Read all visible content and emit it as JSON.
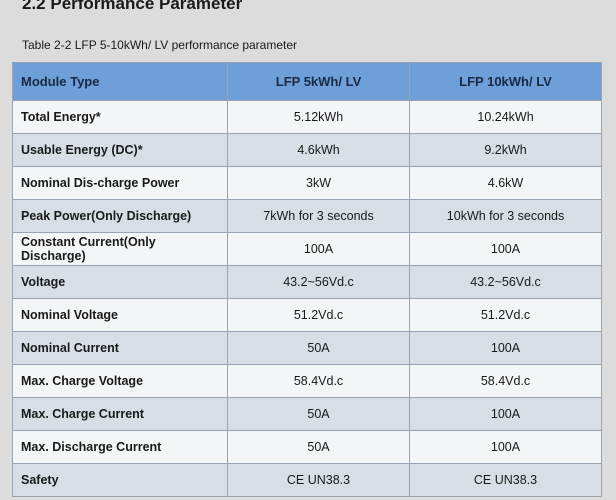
{
  "heading": "2.2 Performance Parameter",
  "caption": "Table 2-2 LFP 5-10kWh/ LV performance parameter",
  "table": {
    "header": [
      "Module Type",
      "LFP 5kWh/ LV",
      "LFP 10kWh/ LV"
    ],
    "rows": [
      [
        "Total Energy*",
        "5.12kWh",
        "10.24kWh"
      ],
      [
        "Usable Energy (DC)*",
        "4.6kWh",
        "9.2kWh"
      ],
      [
        "Nominal Dis-charge Power",
        "3kW",
        "4.6kW"
      ],
      [
        "Peak Power(Only Discharge)",
        "7kWh for 3 seconds",
        "10kWh for 3 seconds"
      ],
      [
        "Constant Current(Only Discharge)",
        "100A",
        "100A"
      ],
      [
        "Voltage",
        "43.2~56Vd.c",
        "43.2~56Vd.c"
      ],
      [
        "Nominal Voltage",
        "51.2Vd.c",
        "51.2Vd.c"
      ],
      [
        "Nominal Current",
        "50A",
        "100A"
      ],
      [
        "Max. Charge Voltage",
        "58.4Vd.c",
        "58.4Vd.c"
      ],
      [
        "Max. Charge Current",
        "50A",
        "100A"
      ],
      [
        "Max. Discharge Current",
        "50A",
        "100A"
      ],
      [
        "Safety",
        "CE UN38.3",
        "CE UN38.3"
      ]
    ]
  }
}
